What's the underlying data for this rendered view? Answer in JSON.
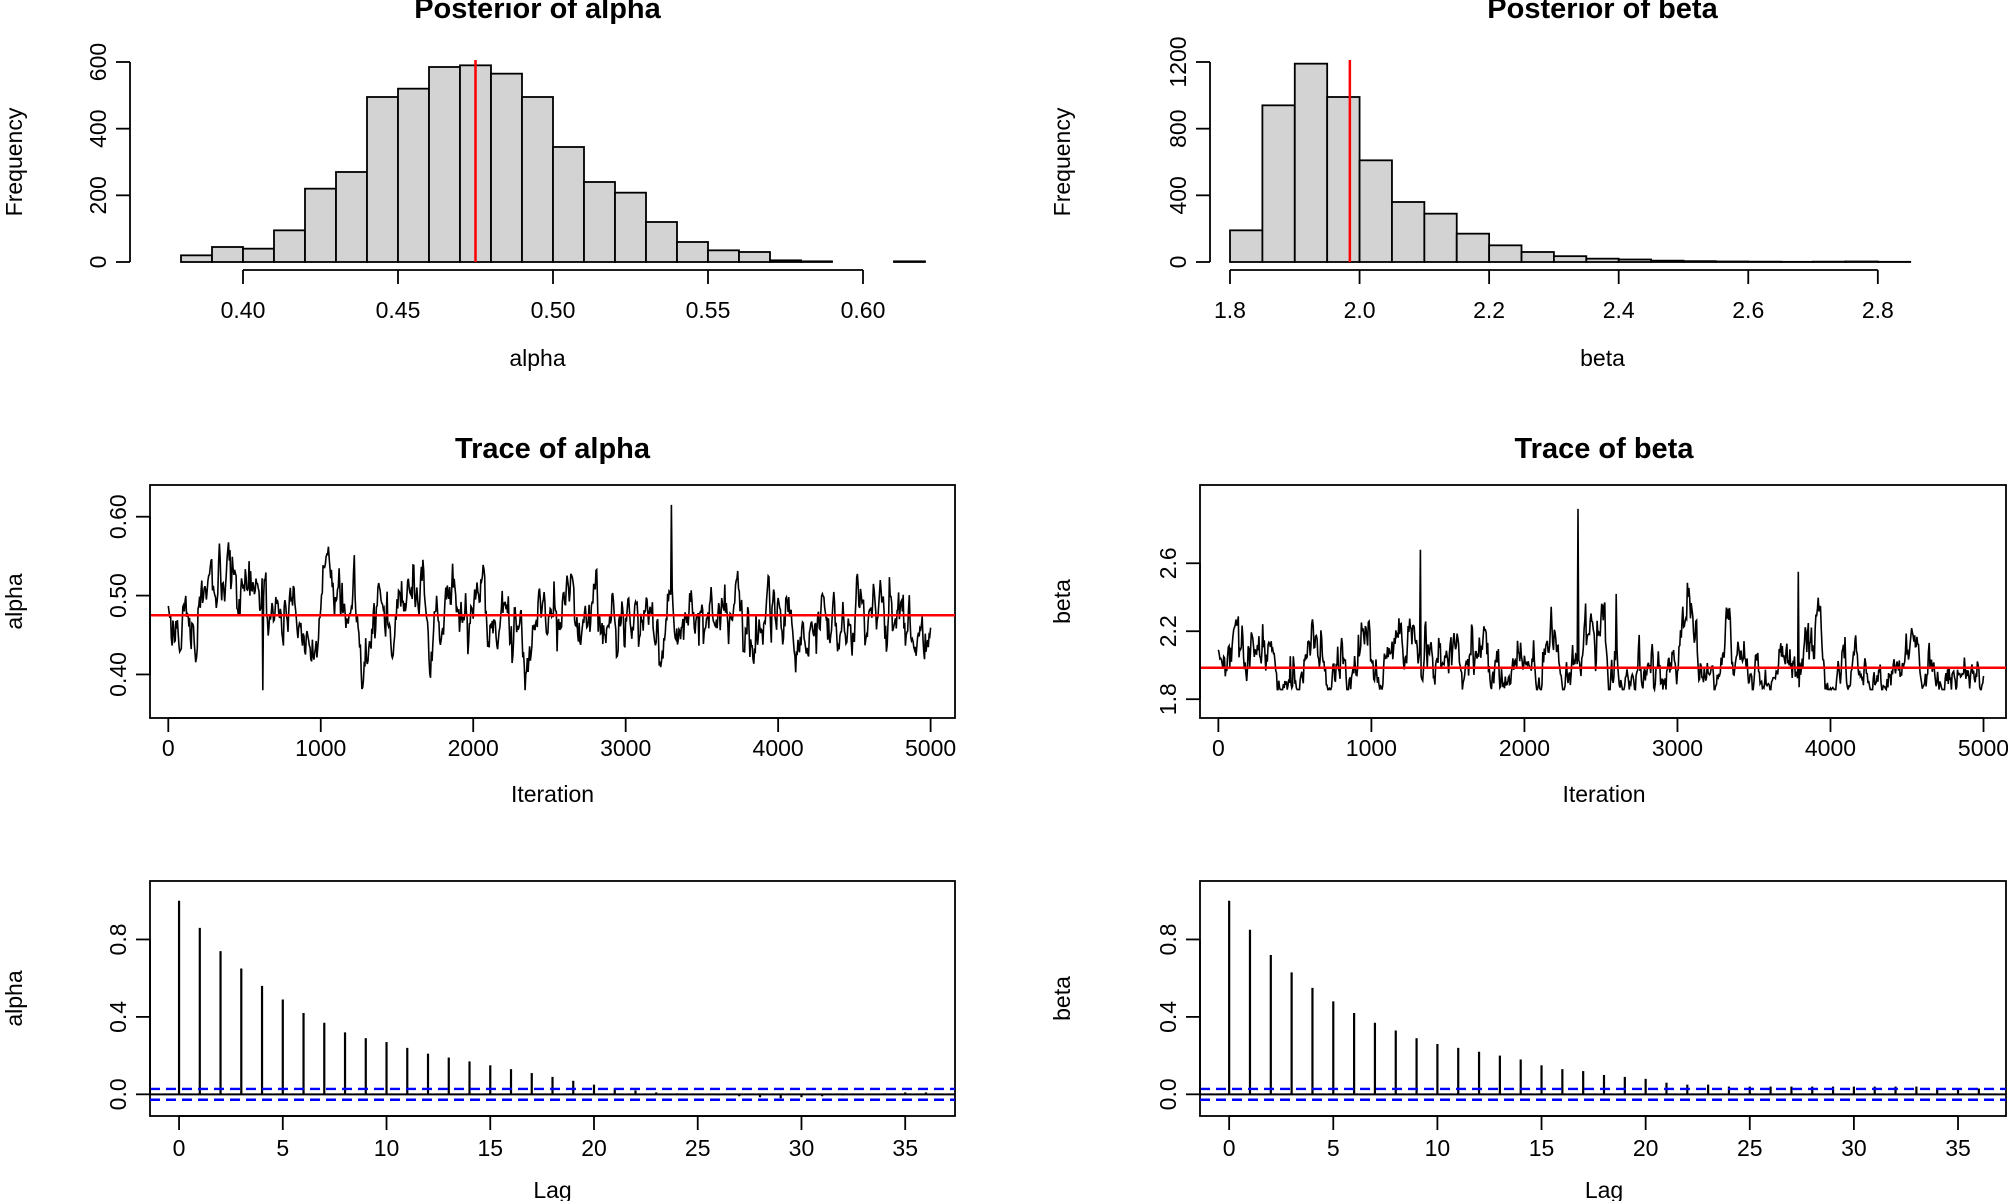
{
  "colors": {
    "hist_fill": "#d3d3d3",
    "mean_line": "#ff0000",
    "ci_line": "#0000ff",
    "ink": "#000000"
  },
  "chart_data": [
    {
      "id": "hist-alpha",
      "type": "bar",
      "title": "Posterior of alpha",
      "xlabel": "alpha",
      "ylabel": "Frequency",
      "bin_start": 0.37,
      "bin_width": 0.01,
      "values": [
        0,
        20,
        45,
        40,
        95,
        220,
        270,
        495,
        520,
        585,
        590,
        565,
        495,
        345,
        240,
        208,
        120,
        60,
        35,
        30,
        5,
        2,
        0,
        0,
        2
      ],
      "mean": 0.475,
      "xlim": [
        0.37,
        0.62
      ],
      "ylim": [
        0,
        600
      ],
      "xticks": [
        "0.40",
        "0.45",
        "0.50",
        "0.55",
        "0.60"
      ],
      "yticks": [
        "0",
        "200",
        "400",
        "600"
      ]
    },
    {
      "id": "hist-beta",
      "type": "bar",
      "title": "Posterior of beta",
      "xlabel": "beta",
      "ylabel": "Frequency",
      "bin_start": 1.8,
      "bin_width": 0.05,
      "values": [
        190,
        940,
        1190,
        990,
        610,
        360,
        290,
        170,
        100,
        60,
        35,
        20,
        15,
        8,
        5,
        3,
        2,
        1,
        2,
        3,
        1,
        0,
        0
      ],
      "mean": 1.985,
      "xlim": [
        1.8,
        2.95
      ],
      "ylim": [
        0,
        1200
      ],
      "xticks": [
        "1.8",
        "2.0",
        "2.2",
        "2.4",
        "2.6",
        "2.8"
      ],
      "yticks": [
        "0",
        "400",
        "800",
        "1200"
      ]
    },
    {
      "id": "trace-alpha",
      "type": "line",
      "title": "Trace of alpha",
      "xlabel": "Iteration",
      "ylabel": "alpha",
      "n_iter": 5000,
      "mean": 0.475,
      "sd": 0.031,
      "phi": 0.85,
      "seed": 17,
      "spikes": [
        {
          "x": 3300,
          "y": 0.615
        },
        {
          "x": 620,
          "y": 0.38
        }
      ],
      "xlim": [
        0,
        5000
      ],
      "ylim": [
        0.38,
        0.615
      ],
      "xticks": [
        "0",
        "1000",
        "2000",
        "3000",
        "4000",
        "5000"
      ],
      "yticks": [
        "0.40",
        "0.50",
        "0.60"
      ]
    },
    {
      "id": "trace-beta",
      "type": "line",
      "title": "Trace of beta",
      "xlabel": "Iteration",
      "ylabel": "beta",
      "n_iter": 5000,
      "mean": 1.985,
      "sd": 0.11,
      "phi": 0.85,
      "seed": 29,
      "spikes": [
        {
          "x": 2350,
          "y": 2.92
        },
        {
          "x": 1320,
          "y": 2.68
        },
        {
          "x": 3790,
          "y": 2.55
        },
        {
          "x": 2600,
          "y": 2.42
        }
      ],
      "xlim": [
        0,
        5000
      ],
      "ylim": [
        1.8,
        2.92
      ],
      "xticks": [
        "0",
        "1000",
        "2000",
        "3000",
        "4000",
        "5000"
      ],
      "yticks": [
        "1.8",
        "2.2",
        "2.6"
      ]
    },
    {
      "id": "acf-alpha",
      "type": "bar",
      "title": "",
      "xlabel": "Lag",
      "ylabel": "alpha",
      "lags": [
        0,
        1,
        2,
        3,
        4,
        5,
        6,
        7,
        8,
        9,
        10,
        11,
        12,
        13,
        14,
        15,
        16,
        17,
        18,
        19,
        20,
        21,
        22,
        23,
        24,
        25,
        26,
        27,
        28,
        29,
        30,
        31,
        32,
        33,
        34,
        35,
        36
      ],
      "values": [
        1.0,
        0.86,
        0.74,
        0.65,
        0.56,
        0.49,
        0.42,
        0.37,
        0.32,
        0.29,
        0.27,
        0.24,
        0.21,
        0.19,
        0.17,
        0.15,
        0.13,
        0.11,
        0.09,
        0.07,
        0.05,
        0.03,
        0.02,
        0.01,
        0.005,
        0.0,
        -0.005,
        -0.01,
        -0.015,
        -0.02,
        -0.015,
        -0.01,
        -0.005,
        0.0,
        0.005,
        0.01,
        0.01
      ],
      "ci": 0.028,
      "xlim": [
        0,
        36
      ],
      "ylim": [
        -0.03,
        1.0
      ],
      "xticks": [
        "0",
        "5",
        "10",
        "15",
        "20",
        "25",
        "30",
        "35"
      ],
      "yticks": [
        "0.0",
        "0.4",
        "0.8"
      ]
    },
    {
      "id": "acf-beta",
      "type": "bar",
      "title": "",
      "xlabel": "Lag",
      "ylabel": "beta",
      "lags": [
        0,
        1,
        2,
        3,
        4,
        5,
        6,
        7,
        8,
        9,
        10,
        11,
        12,
        13,
        14,
        15,
        16,
        17,
        18,
        19,
        20,
        21,
        22,
        23,
        24,
        25,
        26,
        27,
        28,
        29,
        30,
        31,
        32,
        33,
        34,
        35,
        36
      ],
      "values": [
        1.0,
        0.85,
        0.72,
        0.63,
        0.55,
        0.48,
        0.42,
        0.37,
        0.33,
        0.29,
        0.26,
        0.24,
        0.22,
        0.2,
        0.18,
        0.15,
        0.13,
        0.12,
        0.1,
        0.09,
        0.08,
        0.06,
        0.05,
        0.05,
        0.04,
        0.04,
        0.04,
        0.04,
        0.04,
        0.04,
        0.04,
        0.04,
        0.04,
        0.04,
        0.03,
        0.03,
        0.03
      ],
      "ci": 0.028,
      "xlim": [
        0,
        36
      ],
      "ylim": [
        -0.03,
        1.0
      ],
      "xticks": [
        "0",
        "5",
        "10",
        "15",
        "20",
        "25",
        "30",
        "35"
      ],
      "yticks": [
        "0.0",
        "0.4",
        "0.8"
      ]
    }
  ]
}
